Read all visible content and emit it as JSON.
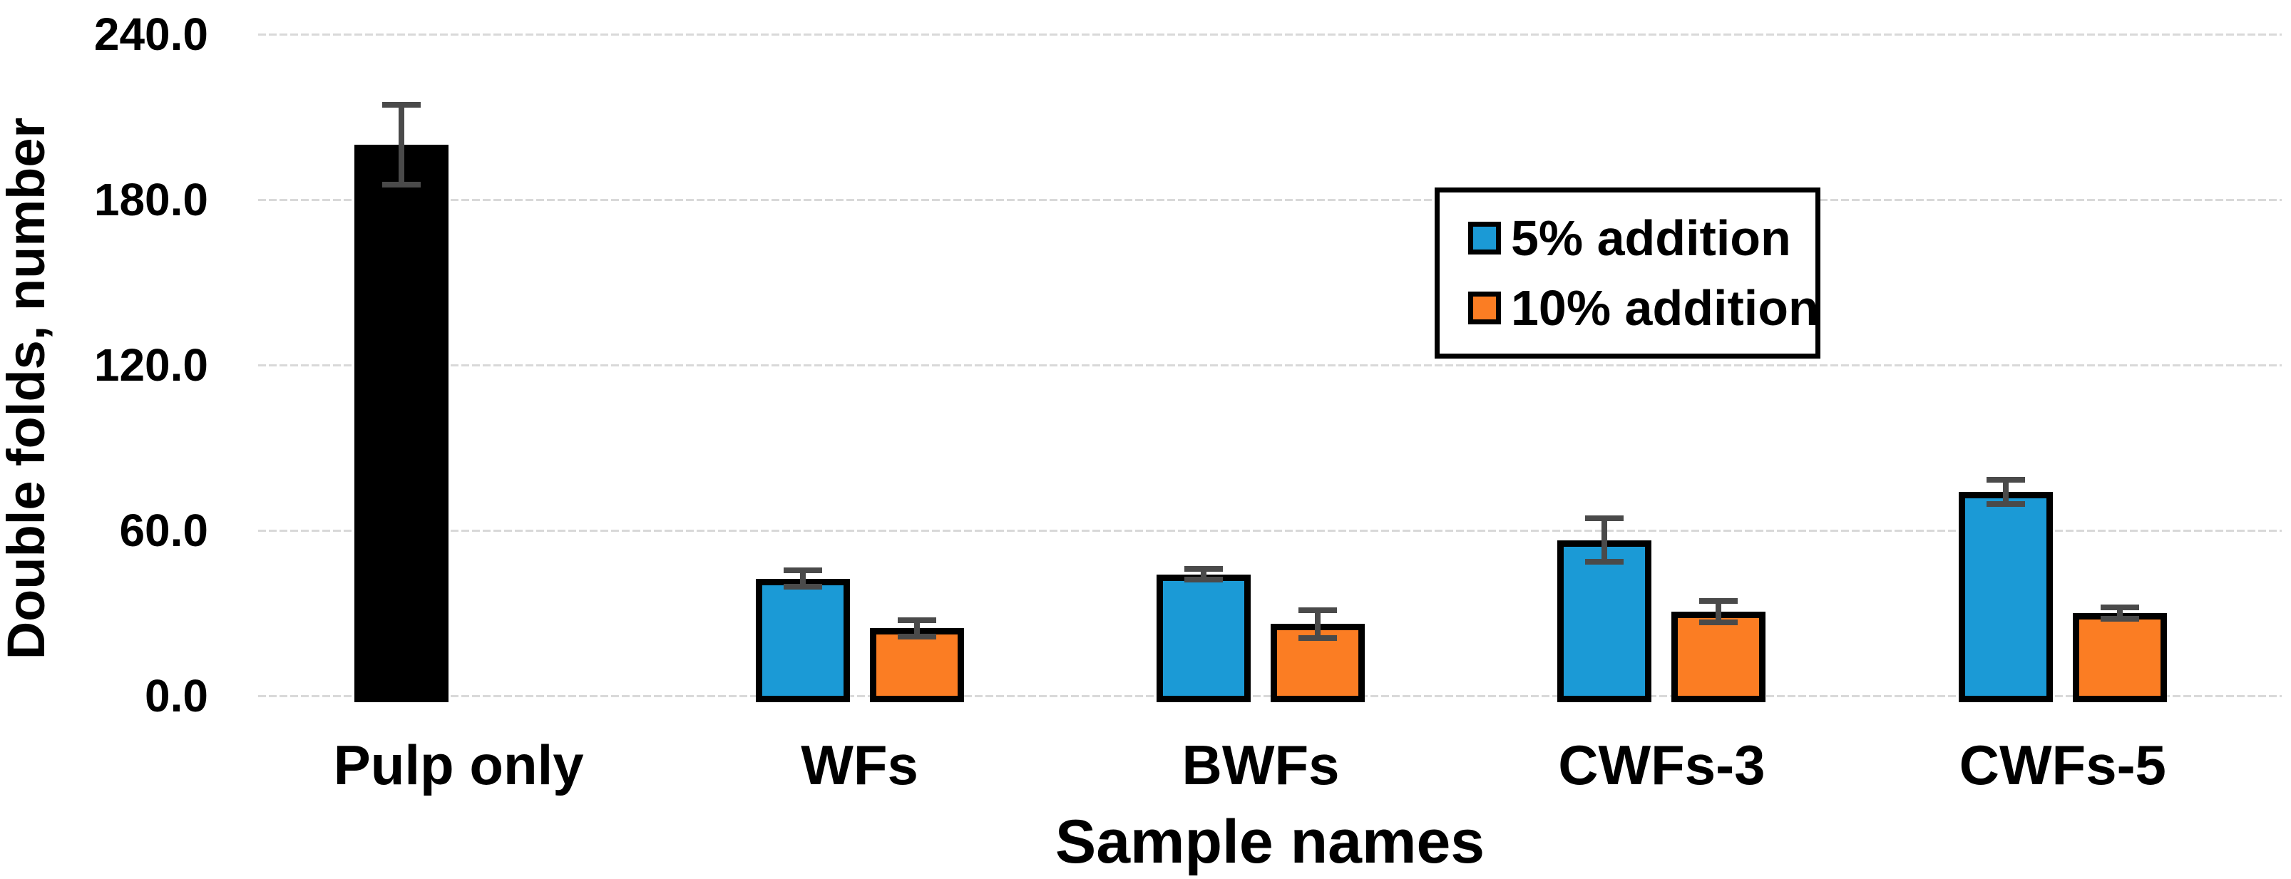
{
  "figure": {
    "background": "#ffffff",
    "text_color": "#000000"
  },
  "axes": {
    "y_title": "Double folds, number",
    "x_title": "Sample names",
    "ytick_labels": [
      "240.0",
      "180.0",
      "120.0",
      "60.0",
      "0.0"
    ]
  },
  "legend": {
    "entries": [
      {
        "label": "5% addition",
        "color": "#1b9ad6"
      },
      {
        "label": "10% addition",
        "color": "#fb7d23"
      }
    ],
    "border_color": "#000000",
    "background": "#ffffff",
    "position": "upper right inside plot"
  },
  "chart_data": {
    "type": "bar",
    "title": "",
    "xlabel": "Sample names",
    "ylabel": "Double folds, number",
    "categories": [
      "Pulp only",
      "WFs",
      "BWFs",
      "CWFs-3",
      "CWFs-5"
    ],
    "series": [
      {
        "name": "5% addition",
        "color": "#1b9ad6",
        "bar_colors": [
          "#000000",
          "#1b9ad6",
          "#1b9ad6",
          "#1b9ad6",
          "#1b9ad6"
        ],
        "values": [
          200.0,
          42.5,
          44.0,
          56.5,
          74.0
        ],
        "error_bars": [
          15.5,
          4.0,
          3.0,
          9.0,
          5.5
        ],
        "note": "Pulp only control bar is colored black"
      },
      {
        "name": "10% addition",
        "color": "#fb7d23",
        "bar_colors": [
          null,
          "#fb7d23",
          "#fb7d23",
          "#fb7d23",
          "#fb7d23"
        ],
        "values": [
          null,
          24.5,
          26.0,
          30.5,
          30.0
        ],
        "error_bars": [
          null,
          4.0,
          6.0,
          5.0,
          3.0
        ]
      }
    ],
    "ylim": [
      0,
      240
    ],
    "yticks": [
      240,
      180,
      120,
      60,
      0
    ],
    "ytick_format": "one_decimal",
    "grid": "horizontal",
    "gridline_color": "#d9d9d9",
    "bar_outline_color": "#000000",
    "error_bar_color": "#4a4a4a",
    "legend_position": "upper right inside plot"
  }
}
